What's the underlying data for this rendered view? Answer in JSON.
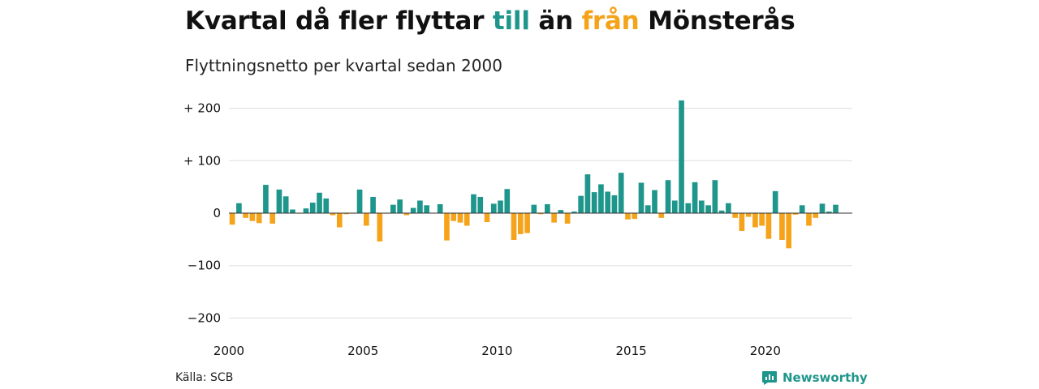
{
  "title": {
    "part1": "Kvartal då fler flyttar ",
    "till": "till",
    "part2": " än ",
    "fran": "från",
    "part3": " Mönsterås"
  },
  "subtitle": "Flyttningsnetto per kvartal sedan 2000",
  "source": "Källa: SCB",
  "brand": {
    "name": "Newsworthy",
    "icon": "newsworthy-chart-icon"
  },
  "colors": {
    "positive": "#1f968b",
    "negative": "#f5a31a",
    "grid": "#dddddd",
    "zero_line": "#333333"
  },
  "chart_data": {
    "type": "bar",
    "title": "Kvartal då fler flyttar till än från Mönsterås",
    "subtitle": "Flyttningsnetto per kvartal sedan 2000",
    "x": [
      "2000Q1",
      "2000Q2",
      "2000Q3",
      "2000Q4",
      "2001Q1",
      "2001Q2",
      "2001Q3",
      "2001Q4",
      "2002Q1",
      "2002Q2",
      "2002Q3",
      "2002Q4",
      "2003Q1",
      "2003Q2",
      "2003Q3",
      "2003Q4",
      "2004Q1",
      "2004Q2",
      "2004Q3",
      "2004Q4",
      "2005Q1",
      "2005Q2",
      "2005Q3",
      "2005Q4",
      "2006Q1",
      "2006Q2",
      "2006Q3",
      "2006Q4",
      "2007Q1",
      "2007Q2",
      "2007Q3",
      "2007Q4",
      "2008Q1",
      "2008Q2",
      "2008Q3",
      "2008Q4",
      "2009Q1",
      "2009Q2",
      "2009Q3",
      "2009Q4",
      "2010Q1",
      "2010Q2",
      "2010Q3",
      "2010Q4",
      "2011Q1",
      "2011Q2",
      "2011Q3",
      "2011Q4",
      "2012Q1",
      "2012Q2",
      "2012Q3",
      "2012Q4",
      "2013Q1",
      "2013Q2",
      "2013Q3",
      "2013Q4",
      "2014Q1",
      "2014Q2",
      "2014Q3",
      "2014Q4",
      "2015Q1",
      "2015Q2",
      "2015Q3",
      "2015Q4",
      "2016Q1",
      "2016Q2",
      "2016Q3",
      "2016Q4",
      "2017Q1",
      "2017Q2",
      "2017Q3",
      "2017Q4",
      "2018Q1",
      "2018Q2",
      "2018Q3",
      "2018Q4",
      "2019Q1",
      "2019Q2",
      "2019Q3",
      "2019Q4",
      "2020Q1",
      "2020Q2",
      "2020Q3",
      "2020Q4",
      "2021Q1",
      "2021Q2",
      "2021Q3",
      "2021Q4",
      "2022Q1",
      "2022Q2",
      "2022Q3",
      "2022Q4"
    ],
    "values": [
      -22,
      19,
      -9,
      -15,
      -19,
      54,
      -20,
      45,
      32,
      7,
      -1,
      9,
      20,
      39,
      28,
      -4,
      -27,
      -2,
      -1,
      45,
      -24,
      31,
      -54,
      -1,
      16,
      26,
      -4,
      10,
      24,
      15,
      0,
      17,
      -52,
      -15,
      -18,
      -24,
      36,
      31,
      -17,
      18,
      24,
      46,
      -51,
      -40,
      -38,
      16,
      -2,
      17,
      -18,
      6,
      -20,
      3,
      33,
      74,
      40,
      55,
      41,
      34,
      77,
      -12,
      -11,
      58,
      15,
      44,
      -9,
      63,
      24,
      215,
      19,
      59,
      24,
      15,
      63,
      5,
      19,
      -9,
      -34,
      -7,
      -27,
      -24,
      -49,
      42,
      -51,
      -67,
      -3,
      15,
      -24,
      -9,
      18,
      3,
      16,
      0
    ],
    "xlabel": "",
    "ylabel": "",
    "ylim": [
      -200,
      220
    ],
    "yticks": [
      {
        "value": 200,
        "label": "+ 200"
      },
      {
        "value": 100,
        "label": "+ 100"
      },
      {
        "value": 0,
        "label": "0"
      },
      {
        "value": -100,
        "label": "−100"
      },
      {
        "value": -200,
        "label": "−200"
      }
    ],
    "xticks": [
      {
        "value": "2000Q1",
        "label": "2000"
      },
      {
        "value": "2005Q1",
        "label": "2005"
      },
      {
        "value": "2010Q1",
        "label": "2010"
      },
      {
        "value": "2015Q1",
        "label": "2015"
      },
      {
        "value": "2020Q1",
        "label": "2020"
      }
    ],
    "grid": true,
    "legend": "none (colors explained in title: teal = till, orange = från)"
  }
}
